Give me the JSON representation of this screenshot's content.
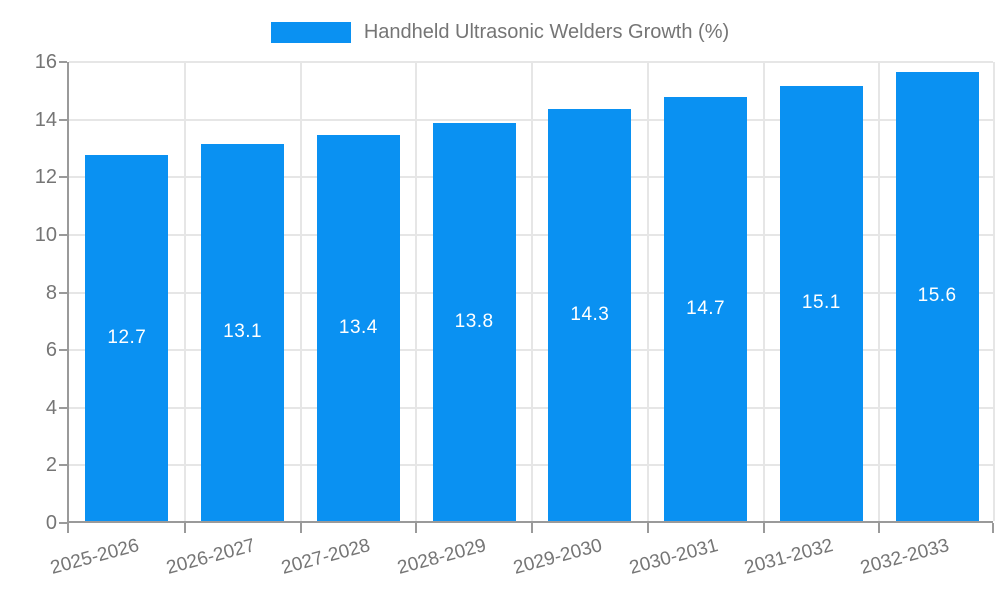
{
  "legend": {
    "label": "Handheld Ultrasonic Welders Growth (%)"
  },
  "chart_data": {
    "type": "bar",
    "title": "",
    "series_name": "Handheld Ultrasonic Welders Growth (%)",
    "categories": [
      "2025-2026",
      "2026-2027",
      "2027-2028",
      "2028-2029",
      "2029-2030",
      "2030-2031",
      "2031-2032",
      "2032-2033"
    ],
    "values": [
      12.7,
      13.1,
      13.4,
      13.8,
      14.3,
      14.7,
      15.1,
      15.6
    ],
    "xlabel": "",
    "ylabel": "",
    "ylim": [
      0,
      16
    ],
    "yticks": [
      0,
      2,
      4,
      6,
      8,
      10,
      12,
      14,
      16
    ],
    "grid": true,
    "legend_position": "top-center",
    "value_label_position": "inside-middle"
  },
  "colors": {
    "bar": "#0A91F2",
    "bar_label": "#FFFFFF",
    "axis_line": "#9A9A9A",
    "gridline": "#E6E6E6",
    "tick_label": "#757575",
    "legend_text": "#757575",
    "background": "#FFFFFF"
  }
}
